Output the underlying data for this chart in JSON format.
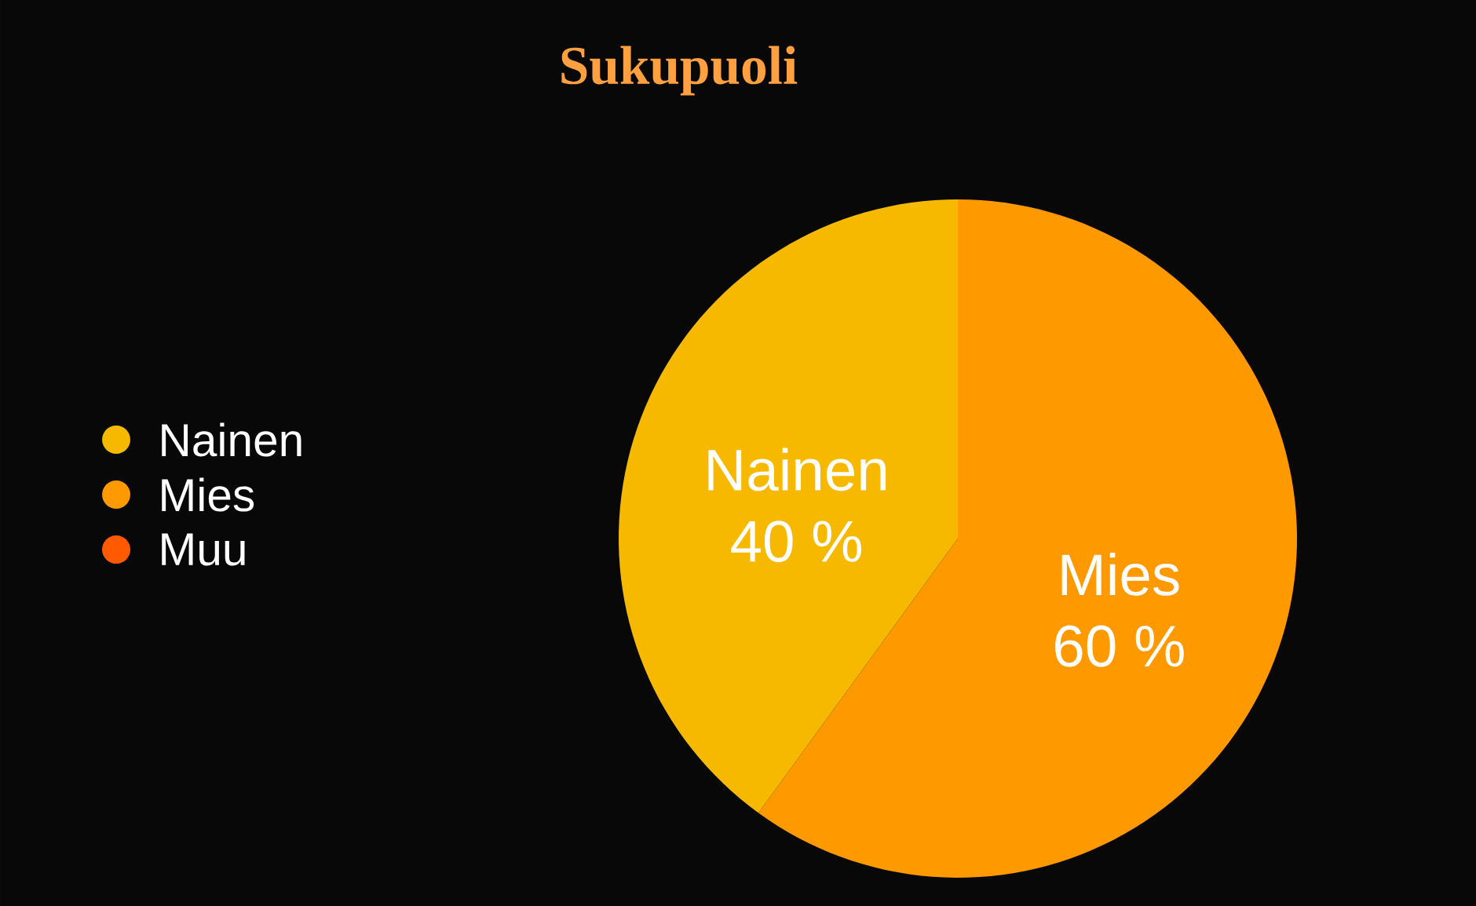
{
  "chart_data": {
    "type": "pie",
    "title": "Sukupuoli",
    "categories": [
      "Nainen",
      "Mies",
      "Muu"
    ],
    "values": [
      40,
      60,
      0
    ],
    "colors": [
      "#f7b900",
      "#ff9900",
      "#ff5a00"
    ],
    "value_labels": [
      "40 %",
      "60 %",
      null
    ],
    "legend": "left"
  }
}
